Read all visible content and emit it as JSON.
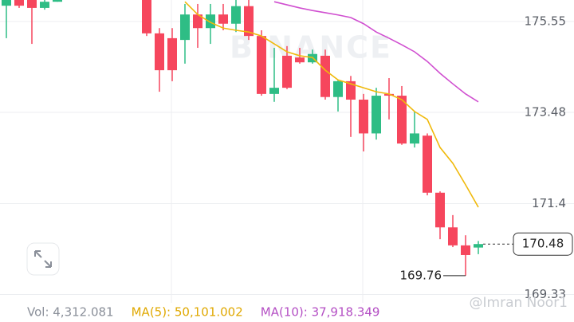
{
  "chart_data": {
    "type": "candlestick",
    "categories": [
      null,
      null,
      null,
      null,
      null,
      null,
      null,
      null,
      null,
      null,
      null,
      null,
      null,
      null,
      null,
      null,
      null,
      null,
      null,
      null,
      null,
      null,
      null,
      null,
      null,
      null,
      null,
      null,
      null,
      null,
      null,
      null,
      null,
      null,
      null,
      null,
      null,
      null
    ],
    "open": [
      175.91,
      176.04,
      176.04,
      175.86,
      176.0,
      null,
      null,
      null,
      null,
      null,
      null,
      176.04,
      175.28,
      175.17,
      175.13,
      175.71,
      175.4,
      175.71,
      175.5,
      175.9,
      175.22,
      173.9,
      174.77,
      174.73,
      174.62,
      174.77,
      173.83,
      174.19,
      173.77,
      173.0,
      173.9,
      173.86,
      172.77,
      172.95,
      171.65,
      170.86,
      170.45,
      170.4
    ],
    "high": [
      176.04,
      176.04,
      176.04,
      176.04,
      176.04,
      null,
      null,
      null,
      null,
      null,
      null,
      176.04,
      175.4,
      175.4,
      175.95,
      175.95,
      175.95,
      175.95,
      176.04,
      176.04,
      175.35,
      174.95,
      174.99,
      174.95,
      174.91,
      174.91,
      174.22,
      174.31,
      173.9,
      174.04,
      174.26,
      174.08,
      173.5,
      173.0,
      171.68,
      171.14,
      170.68,
      170.55
    ],
    "low": [
      175.17,
      175.86,
      175.04,
      175.82,
      176.0,
      null,
      null,
      null,
      null,
      null,
      null,
      175.22,
      173.95,
      174.19,
      174.59,
      174.95,
      175.04,
      175.35,
      175.31,
      175.13,
      173.86,
      173.72,
      174.01,
      174.59,
      174.59,
      173.77,
      173.5,
      172.92,
      172.59,
      172.86,
      173.32,
      172.74,
      172.68,
      171.59,
      170.59,
      170.41,
      169.76,
      170.25
    ],
    "close": [
      176.04,
      175.91,
      175.86,
      176.0,
      176.04,
      null,
      null,
      null,
      null,
      null,
      null,
      175.28,
      174.44,
      174.44,
      175.71,
      175.4,
      175.71,
      175.5,
      175.9,
      175.22,
      173.9,
      174.04,
      174.04,
      174.62,
      174.81,
      173.83,
      174.19,
      173.77,
      173.0,
      173.86,
      173.86,
      172.77,
      173.0,
      171.65,
      170.86,
      170.45,
      170.23,
      170.48
    ],
    "up_color": "#2ebd85",
    "down_color": "#f6465d",
    "lines": [
      {
        "color": "#f0b90b",
        "values": [
          null,
          null,
          null,
          null,
          null,
          null,
          null,
          null,
          null,
          null,
          null,
          null,
          null,
          null,
          176.0,
          175.71,
          175.53,
          175.4,
          175.35,
          175.31,
          175.22,
          175.04,
          174.86,
          174.77,
          174.73,
          174.44,
          174.22,
          174.13,
          174.04,
          173.95,
          173.9,
          173.77,
          173.5,
          173.32,
          172.68,
          172.32,
          171.83,
          171.32
        ]
      },
      {
        "color": "#d04fd0",
        "values": [
          null,
          null,
          null,
          null,
          null,
          null,
          null,
          null,
          null,
          null,
          null,
          null,
          null,
          null,
          null,
          null,
          null,
          null,
          null,
          null,
          null,
          176.0,
          175.93,
          175.86,
          175.8,
          175.75,
          175.7,
          175.64,
          175.5,
          175.31,
          175.17,
          175.02,
          174.86,
          174.64,
          174.37,
          174.13,
          173.9,
          173.72
        ]
      }
    ],
    "ylim": [
      169.14,
      176.04
    ],
    "yticks": [
      175.55,
      173.48,
      171.4,
      169.33
    ],
    "grid": true,
    "last_price": 170.48,
    "low_marker": 169.76,
    "watermark": "BINANCE",
    "credit": "@Imran Noor1",
    "footer": [
      {
        "text": "Vol: 4,312.081",
        "color": "#8a8f99"
      },
      {
        "text": "MA(5): 50,101.002",
        "color": "#e0a800"
      },
      {
        "text": "MA(10): 37,918.349",
        "color": "#b44fc4"
      }
    ]
  }
}
